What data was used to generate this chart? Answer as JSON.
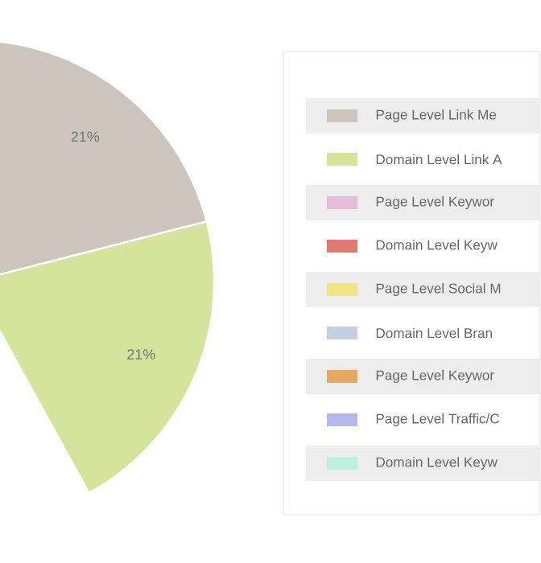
{
  "chart_data": {
    "type": "pie",
    "categories": [
      "Page Level Link Me",
      "Domain Level Link A",
      "Page Level Keywor",
      "Domain Level Keyw",
      "Page Level Social M",
      "Domain Level Bran",
      "Page Level Keywor",
      "Page Level Traffic/C",
      "Domain Level Keyw"
    ],
    "values": [
      21,
      21,
      null,
      null,
      null,
      null,
      null,
      null,
      null
    ],
    "value_labels": [
      "21%",
      "21%",
      null,
      null,
      null,
      null,
      null,
      null,
      null
    ],
    "colors": [
      "#cdc5bd",
      "#d6e39a",
      "#e5bcd9",
      "#e07a72",
      "#efe584",
      "#c3d0df",
      "#e6a865",
      "#b3b8ee",
      "#bdeee0"
    ],
    "legend": "right"
  }
}
